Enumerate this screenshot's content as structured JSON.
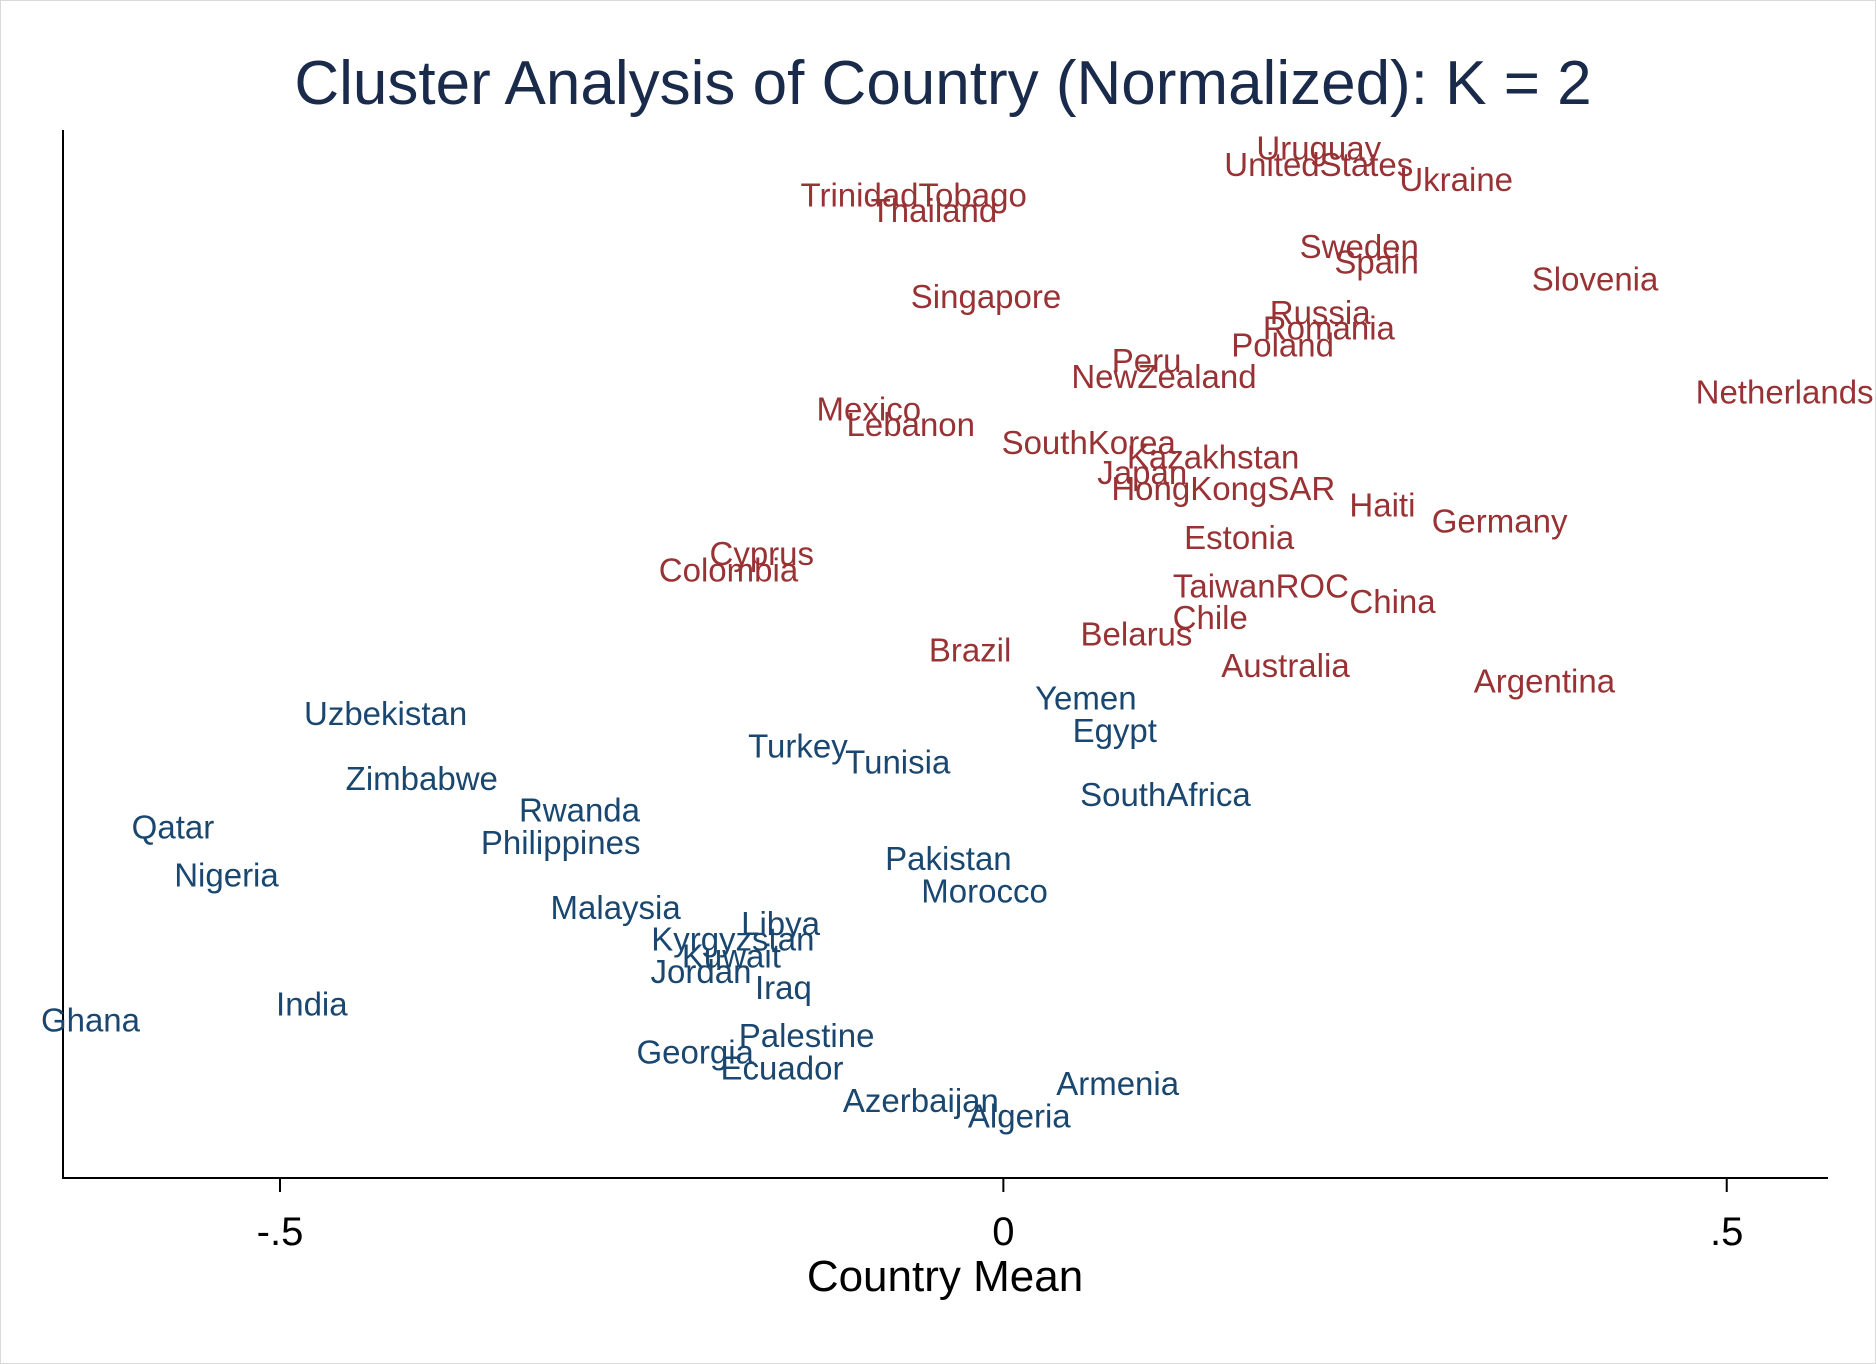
{
  "chart_data": {
    "type": "scatter",
    "title": "Cluster Analysis of Country (Normalized): K = 2",
    "xlabel": "Country Mean",
    "ylabel": "",
    "xlim": [
      -0.65,
      0.57
    ],
    "ylim": [
      -0.105,
      0.895
    ],
    "x_ticks": [
      -0.5,
      0,
      0.5
    ],
    "x_tick_labels": [
      "-.5",
      "0",
      ".5"
    ],
    "marker": "country name text",
    "grid": false,
    "legend": "none",
    "colors": {
      "cluster_1": "#983234",
      "cluster_2": "#1a476f",
      "title": "#1a2a4a"
    },
    "series": [
      {
        "color": "#983234",
        "points": [
          {
            "label": "Uruguay",
            "x": 0.218,
            "y": 0.878
          },
          {
            "label": "UnitedStates",
            "x": 0.218,
            "y": 0.862
          },
          {
            "label": "Ukraine",
            "x": 0.313,
            "y": 0.848
          },
          {
            "label": "TrinidadTobago",
            "x": -0.062,
            "y": 0.833
          },
          {
            "label": "Thailand",
            "x": -0.048,
            "y": 0.818
          },
          {
            "label": "Sweden",
            "x": 0.246,
            "y": 0.784
          },
          {
            "label": "Spain",
            "x": 0.258,
            "y": 0.769
          },
          {
            "label": "Slovenia",
            "x": 0.409,
            "y": 0.753
          },
          {
            "label": "Singapore",
            "x": -0.012,
            "y": 0.736
          },
          {
            "label": "Russia",
            "x": 0.219,
            "y": 0.721
          },
          {
            "label": "Romania",
            "x": 0.225,
            "y": 0.706
          },
          {
            "label": "Poland",
            "x": 0.193,
            "y": 0.69
          },
          {
            "label": "Peru",
            "x": 0.099,
            "y": 0.675
          },
          {
            "label": "NewZealand",
            "x": 0.111,
            "y": 0.66
          },
          {
            "label": "Netherlands",
            "x": 0.54,
            "y": 0.645
          },
          {
            "label": "Mexico",
            "x": -0.093,
            "y": 0.629
          },
          {
            "label": "Lebanon",
            "x": -0.064,
            "y": 0.614
          },
          {
            "label": "SouthKorea",
            "x": 0.059,
            "y": 0.597
          },
          {
            "label": "Kazakhstan",
            "x": 0.145,
            "y": 0.583
          },
          {
            "label": "Japan",
            "x": 0.096,
            "y": 0.568
          },
          {
            "label": "HongKongSAR",
            "x": 0.152,
            "y": 0.553
          },
          {
            "label": "Haiti",
            "x": 0.262,
            "y": 0.537
          },
          {
            "label": "Germany",
            "x": 0.343,
            "y": 0.522
          },
          {
            "label": "Estonia",
            "x": 0.163,
            "y": 0.506
          },
          {
            "label": "Cyprus",
            "x": -0.167,
            "y": 0.491
          },
          {
            "label": "Colombia",
            "x": -0.19,
            "y": 0.475
          },
          {
            "label": "TaiwanROC",
            "x": 0.178,
            "y": 0.46
          },
          {
            "label": "China",
            "x": 0.269,
            "y": 0.445
          },
          {
            "label": "Chile",
            "x": 0.143,
            "y": 0.43
          },
          {
            "label": "Belarus",
            "x": 0.092,
            "y": 0.414
          },
          {
            "label": "Brazil",
            "x": -0.023,
            "y": 0.399
          },
          {
            "label": "Australia",
            "x": 0.195,
            "y": 0.384
          },
          {
            "label": "Argentina",
            "x": 0.374,
            "y": 0.369
          }
        ]
      },
      {
        "color": "#1a476f",
        "points": [
          {
            "label": "Yemen",
            "x": 0.057,
            "y": 0.353
          },
          {
            "label": "Uzbekistan",
            "x": -0.427,
            "y": 0.338
          },
          {
            "label": "Egypt",
            "x": 0.077,
            "y": 0.322
          },
          {
            "label": "Turkey",
            "x": -0.142,
            "y": 0.307
          },
          {
            "label": "Tunisia",
            "x": -0.073,
            "y": 0.292
          },
          {
            "label": "Zimbabwe",
            "x": -0.402,
            "y": 0.276
          },
          {
            "label": "SouthAfrica",
            "x": 0.112,
            "y": 0.261
          },
          {
            "label": "Rwanda",
            "x": -0.293,
            "y": 0.246
          },
          {
            "label": "Qatar",
            "x": -0.574,
            "y": 0.23
          },
          {
            "label": "Philippines",
            "x": -0.306,
            "y": 0.215
          },
          {
            "label": "Pakistan",
            "x": -0.038,
            "y": 0.2
          },
          {
            "label": "Nigeria",
            "x": -0.537,
            "y": 0.184
          },
          {
            "label": "Morocco",
            "x": -0.013,
            "y": 0.169
          },
          {
            "label": "Malaysia",
            "x": -0.268,
            "y": 0.153
          },
          {
            "label": "Libya",
            "x": -0.154,
            "y": 0.138
          },
          {
            "label": "Kyrgyzstan",
            "x": -0.187,
            "y": 0.123
          },
          {
            "label": "Kuwait",
            "x": -0.188,
            "y": 0.107
          },
          {
            "label": "Jordan",
            "x": -0.209,
            "y": 0.092
          },
          {
            "label": "Iraq",
            "x": -0.152,
            "y": 0.077
          },
          {
            "label": "India",
            "x": -0.478,
            "y": 0.061
          },
          {
            "label": "Ghana",
            "x": -0.631,
            "y": 0.046
          },
          {
            "label": "Palestine",
            "x": -0.136,
            "y": 0.031
          },
          {
            "label": "Georgia",
            "x": -0.213,
            "y": 0.015
          },
          {
            "label": "Ecuador",
            "x": -0.153,
            "y": 0.0
          },
          {
            "label": "Armenia",
            "x": 0.079,
            "y": -0.015
          },
          {
            "label": "Azerbaijan",
            "x": -0.057,
            "y": -0.031
          },
          {
            "label": "Algeria",
            "x": 0.011,
            "y": -0.046
          }
        ]
      }
    ]
  }
}
